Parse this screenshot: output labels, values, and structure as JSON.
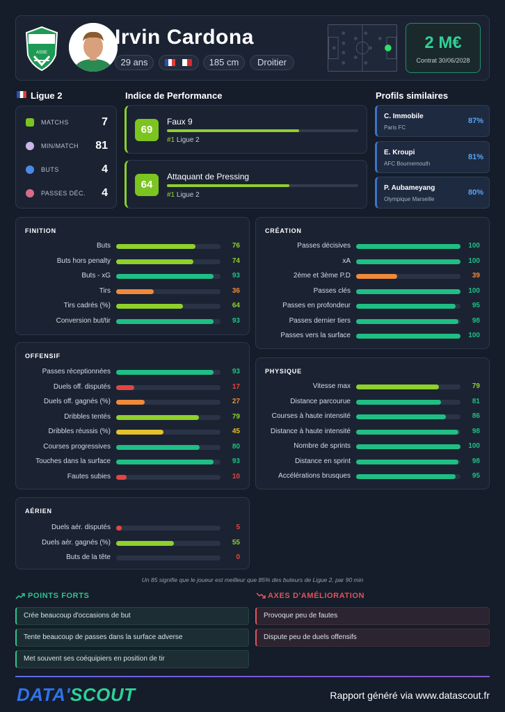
{
  "header": {
    "name": "Irvin Cardona",
    "chips": [
      "29 ans",
      "",
      "185 cm",
      "Droitier"
    ],
    "value": "2 M€",
    "contract": "Contrat 30/06/2028",
    "club_logo_text": "ASSE"
  },
  "league": {
    "title": "Ligue 2",
    "stats": [
      {
        "label": "MATCHS",
        "value": "7",
        "icon": "jersey-icon",
        "color": "#7cc41f"
      },
      {
        "label": "MIN/MATCH",
        "value": "81",
        "icon": "stopwatch-icon",
        "color": "#c9b7e8"
      },
      {
        "label": "BUTS",
        "value": "4",
        "icon": "ball-icon",
        "color": "#4a8be8"
      },
      {
        "label": "PASSES DÉC.",
        "value": "4",
        "icon": "target-icon",
        "color": "#d96a8a"
      }
    ]
  },
  "performance": {
    "title": "Indice de Performance",
    "items": [
      {
        "score": "69",
        "role": "Faux 9",
        "rank": "#1",
        "league": "Ligue 2",
        "pct": 69
      },
      {
        "score": "64",
        "role": "Attaquant de Pressing",
        "rank": "#1",
        "league": "Ligue 2",
        "pct": 64
      }
    ]
  },
  "similar": {
    "title": "Profils similaires",
    "items": [
      {
        "name": "C. Immobile",
        "club": "Paris FC",
        "pct": "87%"
      },
      {
        "name": "E. Kroupi",
        "club": "AFC Bournemouth",
        "pct": "81%"
      },
      {
        "name": "P. Aubameyang",
        "club": "Olympique Marseille",
        "pct": "80%"
      }
    ]
  },
  "blocks": {
    "finition": {
      "title": "FINITION",
      "rows": [
        {
          "label": "Buts",
          "value": 76
        },
        {
          "label": "Buts hors penalty",
          "value": 74
        },
        {
          "label": "Buts - xG",
          "value": 93
        },
        {
          "label": "Tirs",
          "value": 36
        },
        {
          "label": "Tirs cadrés (%)",
          "value": 64
        },
        {
          "label": "Conversion but/tir",
          "value": 93
        }
      ]
    },
    "creation": {
      "title": "CRÉATION",
      "rows": [
        {
          "label": "Passes décisives",
          "value": 100
        },
        {
          "label": "xA",
          "value": 100
        },
        {
          "label": "2ème et 3ème P.D",
          "value": 39
        },
        {
          "label": "Passes clés",
          "value": 100
        },
        {
          "label": "Passes en profondeur",
          "value": 95
        },
        {
          "label": "Passes dernier tiers",
          "value": 98
        },
        {
          "label": "Passes vers la surface",
          "value": 100
        }
      ]
    },
    "offensif": {
      "title": "OFFENSIF",
      "rows": [
        {
          "label": "Passes réceptionnées",
          "value": 93
        },
        {
          "label": "Duels off. disputés",
          "value": 17
        },
        {
          "label": "Duels off. gagnés (%)",
          "value": 27
        },
        {
          "label": "Dribbles tentés",
          "value": 79
        },
        {
          "label": "Dribbles réussis (%)",
          "value": 45
        },
        {
          "label": "Courses progressives",
          "value": 80
        },
        {
          "label": "Touches dans la surface",
          "value": 93
        },
        {
          "label": "Fautes subies",
          "value": 10
        }
      ]
    },
    "physique": {
      "title": "PHYSIQUE",
      "rows": [
        {
          "label": "Vitesse max",
          "value": 79
        },
        {
          "label": "Distance parcourue",
          "value": 81
        },
        {
          "label": "Courses à haute intensité",
          "value": 86
        },
        {
          "label": "Distance à haute intensité",
          "value": 98
        },
        {
          "label": "Nombre de sprints",
          "value": 100
        },
        {
          "label": "Distance en sprint",
          "value": 98
        },
        {
          "label": "Accélérations brusques",
          "value": 95
        }
      ]
    },
    "aerien": {
      "title": "AÉRIEN",
      "rows": [
        {
          "label": "Duels aér. disputés",
          "value": 5
        },
        {
          "label": "Duels aér. gagnés (%)",
          "value": 55
        },
        {
          "label": "Buts de la tête",
          "value": 0
        }
      ]
    }
  },
  "footnote": "Un 85 signifie que le joueur est meilleur que 85% des buteurs de Ligue 2, par 90 min",
  "strengths": {
    "title": "POINTS FORTS",
    "items": [
      "Crée beaucoup d'occasions de but",
      "Tente beaucoup de passes dans la surface adverse",
      "Met souvent ses coéquipiers en position de tir"
    ]
  },
  "improvements": {
    "title": "AXES D'AMÉLIORATION",
    "items": [
      "Provoque peu de fautes",
      "Dispute peu de duels offensifs"
    ]
  },
  "footer": {
    "brand_part1": "DATA'",
    "brand_part2": "SCOUT",
    "generated": "Rapport généré via www.datascout.fr"
  },
  "colors": {
    "green": "#1fbf84",
    "lime": "#8fd12b",
    "yellow": "#e6c229",
    "orange": "#f08a3a",
    "red": "#e2463f"
  }
}
